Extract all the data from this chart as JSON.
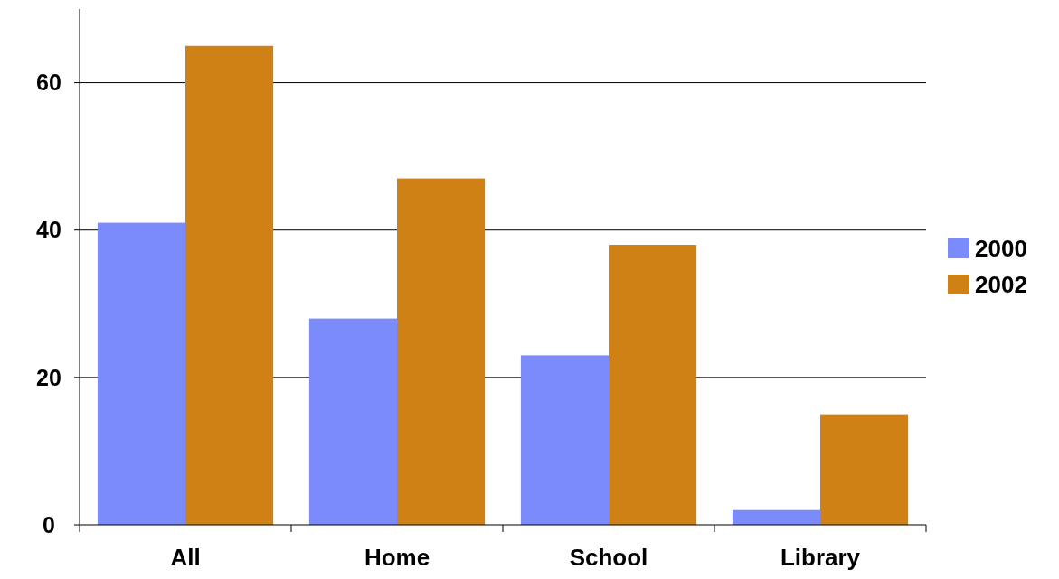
{
  "chart_data": {
    "type": "bar",
    "categories": [
      "All",
      "Home",
      "School",
      "Library"
    ],
    "series": [
      {
        "name": "2000",
        "color": "#7b8bfc",
        "values": [
          41,
          28,
          23,
          2
        ]
      },
      {
        "name": "2002",
        "color": "#d08116",
        "values": [
          65,
          47,
          38,
          15
        ]
      }
    ],
    "ylim": [
      0,
      70
    ],
    "yticks": [
      0,
      20,
      40,
      60
    ],
    "grid": "y",
    "legend": "right"
  }
}
